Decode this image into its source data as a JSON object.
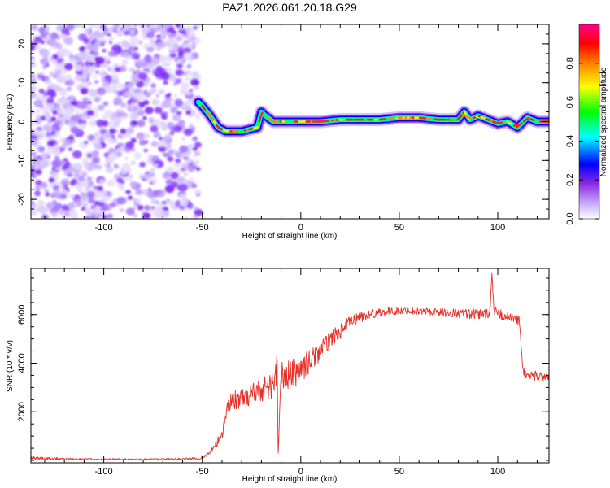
{
  "title": "PAZ1.2026.061.20.18.G29",
  "chart_data": [
    {
      "type": "heatmap",
      "title": "PAZ1.2026.061.20.18.G29",
      "xlabel": "Height of straight line (km)",
      "ylabel": "Frequency (Hz)",
      "xlim": [
        -137,
        126
      ],
      "ylim": [
        -25,
        25
      ],
      "xticks": [
        -100,
        -50,
        0,
        50,
        100
      ],
      "yticks": [
        -20,
        -10,
        0,
        10,
        20
      ],
      "noise_region_end": -52,
      "ridge": {
        "x": [
          -52,
          -50,
          -46,
          -42,
          -38,
          -34,
          -30,
          -26,
          -22,
          -20,
          -18,
          -14,
          -10,
          0,
          10,
          20,
          30,
          40,
          50,
          60,
          70,
          80,
          83,
          86,
          90,
          95,
          100,
          105,
          110,
          115,
          120,
          126
        ],
        "frequency": [
          5,
          4,
          1.5,
          -1.5,
          -2.5,
          -2.5,
          -2.5,
          -2,
          -1.5,
          2.5,
          1.5,
          0,
          0,
          0,
          0,
          0.5,
          0.5,
          0.5,
          1,
          1,
          0.5,
          0.5,
          2.5,
          0.5,
          1.5,
          0.5,
          -0.5,
          0,
          -1.5,
          1,
          0,
          0
        ]
      },
      "colorbar": {
        "label": "Normalized spectral amplitude",
        "ticks": [
          "0.0",
          "0.2",
          "0.4",
          "0.6",
          "0.8"
        ],
        "range": [
          0,
          1
        ],
        "colors": [
          "#ffffff",
          "#8a2be2",
          "#0000ff",
          "#00ffff",
          "#00ff00",
          "#ffff00",
          "#ff8000",
          "#ff0000",
          "#ff0088"
        ]
      }
    },
    {
      "type": "line",
      "xlabel": "Height of straight line (km)",
      "ylabel": "SNR (10 * v/v)",
      "xlim": [
        -137,
        126
      ],
      "ylim": [
        -100,
        7900
      ],
      "xticks": [
        -100,
        -50,
        0,
        50,
        100
      ],
      "yticks": [
        2000,
        4000,
        6000
      ],
      "series": [
        {
          "name": "SNR",
          "color": "#e8302a",
          "x": [
            -137,
            -120,
            -100,
            -80,
            -60,
            -52,
            -48,
            -44,
            -40,
            -37,
            -34,
            -30,
            -26,
            -22,
            -18,
            -14,
            -12,
            -11.5,
            -10,
            -6,
            -2,
            2,
            6,
            10,
            15,
            20,
            25,
            30,
            35,
            40,
            50,
            60,
            70,
            80,
            90,
            96,
            97,
            98,
            105,
            110,
            111,
            112,
            113,
            114,
            118,
            122,
            126
          ],
          "y": [
            100,
            60,
            50,
            50,
            60,
            80,
            200,
            500,
            1100,
            2300,
            2500,
            2500,
            2700,
            2900,
            2950,
            3100,
            3900,
            300,
            3400,
            3500,
            3650,
            3900,
            4200,
            4500,
            5000,
            5300,
            5700,
            5900,
            6000,
            6100,
            6150,
            6150,
            6100,
            6050,
            6000,
            6100,
            7700,
            6100,
            5900,
            5800,
            5700,
            4500,
            3700,
            3500,
            3500,
            3450,
            3450
          ],
          "noise": [
            80,
            40,
            30,
            30,
            40,
            50,
            80,
            150,
            250,
            350,
            400,
            400,
            450,
            500,
            550,
            600,
            700,
            0,
            700,
            650,
            600,
            550,
            450,
            400,
            350,
            300,
            250,
            250,
            200,
            180,
            150,
            150,
            170,
            200,
            220,
            250,
            0,
            250,
            200,
            200,
            200,
            200,
            200,
            200,
            200,
            200,
            200
          ]
        }
      ]
    }
  ]
}
